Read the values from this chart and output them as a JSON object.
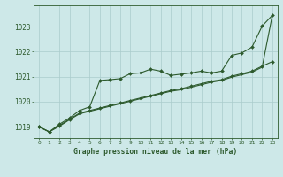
{
  "background_color": "#cde8e8",
  "grid_color": "#aacccc",
  "line_color": "#2d5a2d",
  "title": "Graphe pression niveau de la mer (hPa)",
  "ylabel_ticks": [
    1019,
    1020,
    1021,
    1022,
    1023
  ],
  "xlim": [
    -0.5,
    23.5
  ],
  "ylim": [
    1018.55,
    1023.85
  ],
  "series1_x": [
    0,
    1,
    2,
    3,
    4,
    5,
    6,
    7,
    8,
    9,
    10,
    11,
    12,
    13,
    14,
    15,
    16,
    17,
    18,
    19,
    20,
    21,
    22,
    23
  ],
  "series1_y": [
    1019.0,
    1018.8,
    1019.1,
    1019.35,
    1019.65,
    1019.8,
    1020.85,
    1020.88,
    1020.92,
    1021.12,
    1021.15,
    1021.3,
    1021.22,
    1021.05,
    1021.1,
    1021.15,
    1021.22,
    1021.15,
    1021.22,
    1021.85,
    1021.95,
    1022.18,
    1023.02,
    1023.45
  ],
  "series2_x": [
    0,
    1,
    2,
    3,
    4,
    5,
    6,
    7,
    8,
    9,
    10,
    11,
    12,
    13,
    14,
    15,
    16,
    17,
    18,
    19,
    20,
    21,
    22,
    23
  ],
  "series2_y": [
    1019.0,
    1018.8,
    1019.05,
    1019.3,
    1019.55,
    1019.65,
    1019.75,
    1019.85,
    1019.95,
    1020.05,
    1020.15,
    1020.25,
    1020.35,
    1020.45,
    1020.52,
    1020.62,
    1020.72,
    1020.82,
    1020.88,
    1021.02,
    1021.12,
    1021.22,
    1021.42,
    1021.6
  ],
  "series3_x": [
    0,
    1,
    2,
    3,
    4,
    5,
    6,
    7,
    8,
    9,
    10,
    11,
    12,
    13,
    14,
    15,
    16,
    17,
    18,
    19,
    20,
    21,
    22,
    23
  ],
  "series3_y": [
    1019.0,
    1018.8,
    1019.02,
    1019.28,
    1019.52,
    1019.62,
    1019.72,
    1019.82,
    1019.92,
    1020.02,
    1020.12,
    1020.22,
    1020.32,
    1020.42,
    1020.48,
    1020.58,
    1020.68,
    1020.78,
    1020.85,
    1020.98,
    1021.08,
    1021.18,
    1021.38,
    1023.45
  ],
  "marker_style": "D",
  "marker_size": 2.0,
  "linewidth": 0.8
}
